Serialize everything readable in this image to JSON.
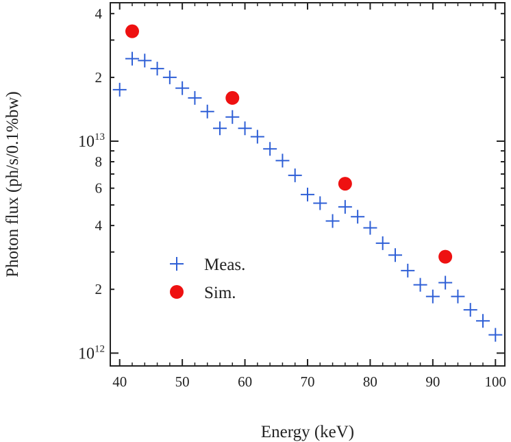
{
  "chart_data": {
    "type": "scatter",
    "xlabel": "Energy (keV)",
    "ylabel": "Photon flux (ph/s/0.1%bw)",
    "x_ticks": [
      40,
      50,
      60,
      70,
      80,
      90,
      100
    ],
    "xlim": [
      38.5,
      101.5
    ],
    "y_scale": "log",
    "ylim": [
      870000000000.0,
      45000000000000.0
    ],
    "y_major_ticks": [
      {
        "value": 1000000000000.0,
        "base": "10",
        "exp": "12"
      },
      {
        "value": 10000000000000.0,
        "base": "10",
        "exp": "13"
      }
    ],
    "y_minor_labels": [
      {
        "value": 2000000000000.0,
        "label": "2"
      },
      {
        "value": 4000000000000.0,
        "label": "4"
      },
      {
        "value": 6000000000000.0,
        "label": "6"
      },
      {
        "value": 8000000000000.0,
        "label": "8"
      },
      {
        "value": 20000000000000.0,
        "label": "2"
      },
      {
        "value": 40000000000000.0,
        "label": "4"
      }
    ],
    "legend_position": "lower-left",
    "series": [
      {
        "name": "Meas.",
        "marker": "plus",
        "color": "#2e5fd6",
        "points": [
          [
            40,
            17500000000000.0
          ],
          [
            42,
            24500000000000.0
          ],
          [
            44,
            24000000000000.0
          ],
          [
            46,
            22000000000000.0
          ],
          [
            48,
            20000000000000.0
          ],
          [
            50,
            17800000000000.0
          ],
          [
            52,
            16000000000000.0
          ],
          [
            54,
            13800000000000.0
          ],
          [
            56,
            11500000000000.0
          ],
          [
            58,
            13000000000000.0
          ],
          [
            60,
            11500000000000.0
          ],
          [
            62,
            10500000000000.0
          ],
          [
            64,
            9200000000000.0
          ],
          [
            66,
            8100000000000.0
          ],
          [
            68,
            6900000000000.0
          ],
          [
            70,
            5600000000000.0
          ],
          [
            72,
            5100000000000.0
          ],
          [
            74,
            4200000000000.0
          ],
          [
            76,
            4900000000000.0
          ],
          [
            78,
            4400000000000.0
          ],
          [
            80,
            3900000000000.0
          ],
          [
            82,
            3300000000000.0
          ],
          [
            84,
            2900000000000.0
          ],
          [
            86,
            2450000000000.0
          ],
          [
            88,
            2100000000000.0
          ],
          [
            90,
            1850000000000.0
          ],
          [
            92,
            2150000000000.0
          ],
          [
            94,
            1850000000000.0
          ],
          [
            96,
            1600000000000.0
          ],
          [
            98,
            1420000000000.0
          ],
          [
            100,
            1220000000000.0
          ]
        ]
      },
      {
        "name": "Sim.",
        "marker": "circle",
        "color": "#ee1111",
        "points": [
          [
            42,
            33000000000000.0
          ],
          [
            58,
            16000000000000.0
          ],
          [
            76,
            6300000000000.0
          ],
          [
            92,
            2850000000000.0
          ]
        ]
      }
    ]
  }
}
